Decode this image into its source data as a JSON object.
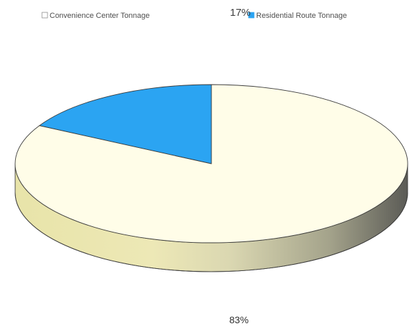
{
  "chart_data": {
    "type": "pie",
    "title": "",
    "legend_position": "top",
    "slices": [
      {
        "label": "Convenience Center Tonnage",
        "value": 83,
        "value_label": "83%",
        "color": "#FFFDE8",
        "side_color": "#C9C79A"
      },
      {
        "label": "Residential Route Tonnage",
        "value": 17,
        "value_label": "17%",
        "color": "#2BA4F2",
        "side_color": "#1C78B7"
      }
    ]
  }
}
